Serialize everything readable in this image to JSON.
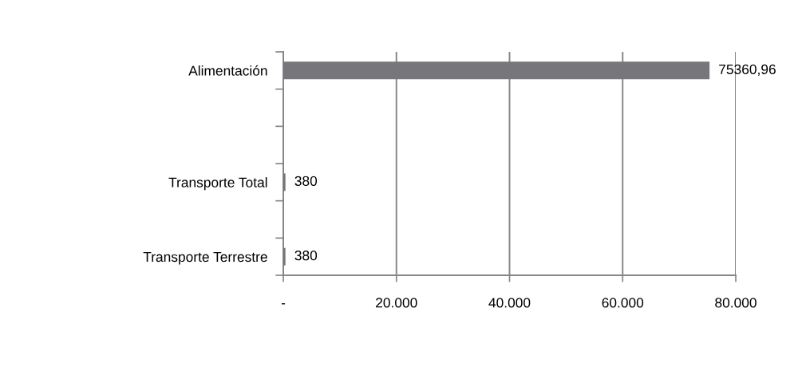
{
  "chart_data": {
    "type": "bar",
    "orientation": "horizontal",
    "categories": [
      "Alimentación",
      null,
      null,
      "Transporte Total",
      null,
      "Transporte Terrestre"
    ],
    "values": [
      75360.96,
      null,
      null,
      380,
      null,
      380
    ],
    "value_labels": [
      "75360,96",
      null,
      null,
      "380",
      null,
      "380"
    ],
    "color": "#77767b",
    "xlim": [
      0,
      80000
    ],
    "xticks": [
      {
        "value": 0,
        "label": "-"
      },
      {
        "value": 20000,
        "label": "20.000"
      },
      {
        "value": 40000,
        "label": "40.000"
      },
      {
        "value": 60000,
        "label": "60.000"
      },
      {
        "value": 80000,
        "label": "80.000"
      }
    ],
    "grid": "x"
  }
}
